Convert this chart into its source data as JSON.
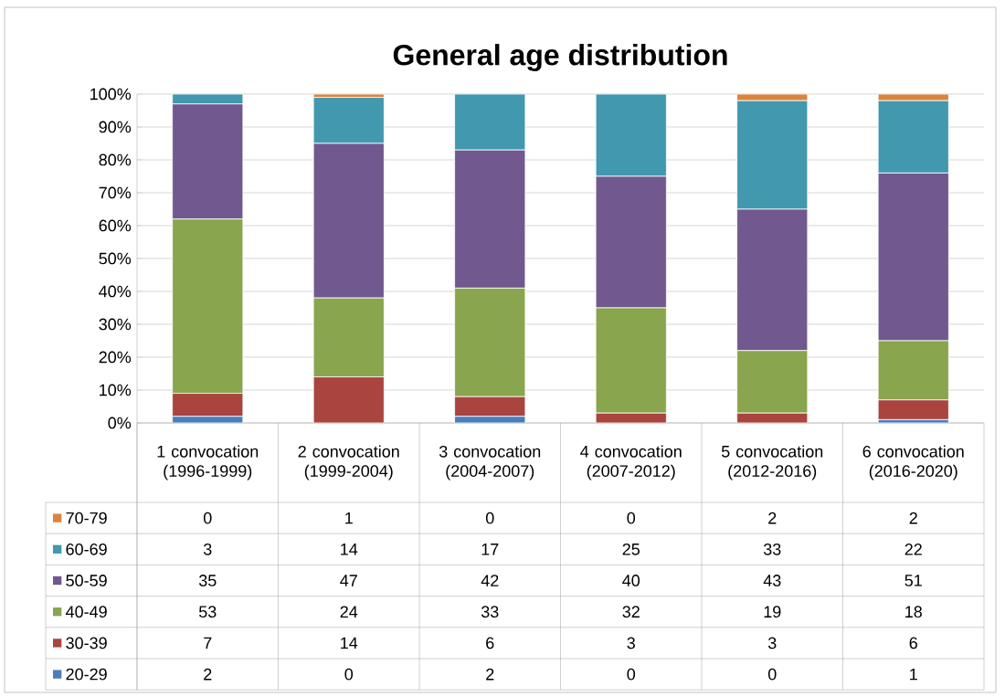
{
  "chart_data": {
    "type": "bar",
    "stacked": true,
    "title": "General age distribution",
    "categories": [
      "1 convocation (1996-1999)",
      "2 convocation (1999-2004)",
      "3 convocation (2004-2007)",
      "4 convocation (2007-2012)",
      "5 convocation (2012-2016)",
      "6 convocation (2016-2020)"
    ],
    "series": [
      {
        "name": "20-29",
        "color": "#4a7ebb",
        "values": [
          2,
          0,
          2,
          0,
          0,
          1
        ]
      },
      {
        "name": "30-39",
        "color": "#a9443f",
        "values": [
          7,
          14,
          6,
          3,
          3,
          6
        ]
      },
      {
        "name": "40-49",
        "color": "#89a54e",
        "values": [
          53,
          24,
          33,
          32,
          19,
          18
        ]
      },
      {
        "name": "50-59",
        "color": "#71588f",
        "values": [
          35,
          47,
          42,
          40,
          43,
          51
        ]
      },
      {
        "name": "60-69",
        "color": "#4198af",
        "values": [
          3,
          14,
          17,
          25,
          33,
          22
        ]
      },
      {
        "name": "70-79",
        "color": "#db843d",
        "values": [
          0,
          1,
          0,
          0,
          2,
          2
        ]
      }
    ],
    "ylim": [
      0,
      100
    ],
    "yticks": [
      {
        "value": 0,
        "label": "0%"
      },
      {
        "value": 10,
        "label": "10%"
      },
      {
        "value": 20,
        "label": "20%"
      },
      {
        "value": 30,
        "label": "30%"
      },
      {
        "value": 40,
        "label": "40%"
      },
      {
        "value": 50,
        "label": "50%"
      },
      {
        "value": 60,
        "label": "60%"
      },
      {
        "value": 70,
        "label": "70%"
      },
      {
        "value": 80,
        "label": "80%"
      },
      {
        "value": 90,
        "label": "90%"
      },
      {
        "value": 100,
        "label": "100%"
      }
    ],
    "grid": "y",
    "legend": "bottom",
    "data_labels": true
  }
}
